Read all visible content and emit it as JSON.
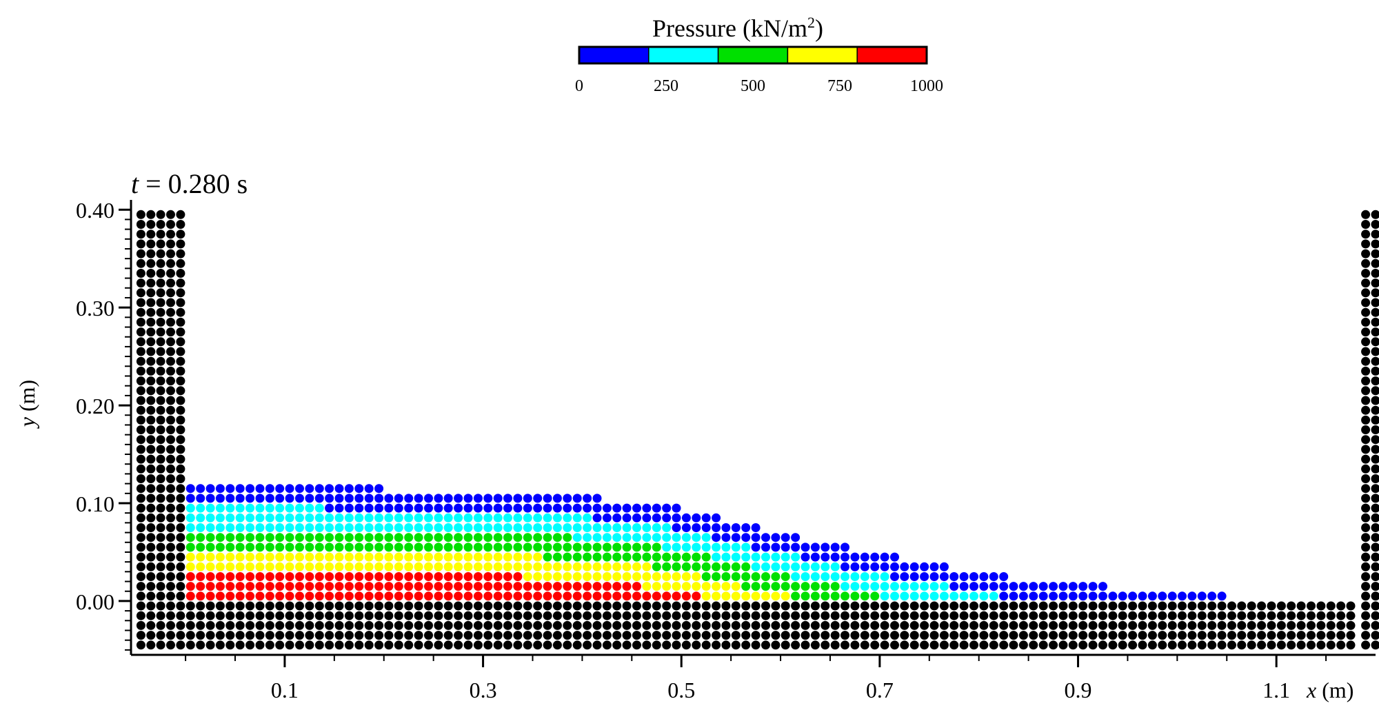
{
  "colorbar": {
    "title": "Pressure (kN/m",
    "title_sup": "2",
    "title_end": ")",
    "ticks": [
      "0",
      "250",
      "500",
      "750",
      "1000"
    ],
    "colors": [
      "#0000ff",
      "#00ffff",
      "#00e000",
      "#ffff00",
      "#ff0000"
    ]
  },
  "chart_data": {
    "type": "scatter",
    "time_label": "t = 0.280 s",
    "time_var": "t",
    "time_value": "= 0.280 s",
    "xlabel_var": "x",
    "xlabel_unit": "(m)",
    "ylabel_var": "y",
    "ylabel_unit": "(m)",
    "x_ticks": [
      "0.1",
      "0.3",
      "0.5",
      "0.7",
      "0.9",
      "1.1"
    ],
    "x_tick_values": [
      0.1,
      0.3,
      0.5,
      0.7,
      0.9,
      1.1
    ],
    "y_ticks": [
      "0.00",
      "0.10",
      "0.20",
      "0.30",
      "0.40"
    ],
    "y_tick_values": [
      0.0,
      0.1,
      0.2,
      0.3,
      0.4
    ],
    "xlim": [
      -0.055,
      1.2
    ],
    "ylim": [
      -0.055,
      0.41
    ],
    "particle_spacing": 0.01,
    "boundary_color": "#000000",
    "boundaries": [
      {
        "name": "left-wall",
        "x_range": [
          -0.045,
          -0.005
        ],
        "y_range": [
          -0.045,
          0.4
        ]
      },
      {
        "name": "right-wall",
        "x_range": [
          1.19,
          1.23
        ],
        "y_range": [
          -0.045,
          0.4
        ]
      },
      {
        "name": "floor",
        "x_range": [
          0.005,
          1.18
        ],
        "y_range": [
          -0.045,
          -0.005
        ]
      }
    ],
    "free_surface_profile": [
      [
        0.0,
        0.117
      ],
      [
        0.1,
        0.117
      ],
      [
        0.2,
        0.115
      ],
      [
        0.3,
        0.112
      ],
      [
        0.4,
        0.107
      ],
      [
        0.5,
        0.095
      ],
      [
        0.6,
        0.07
      ],
      [
        0.7,
        0.048
      ],
      [
        0.8,
        0.03
      ],
      [
        0.88,
        0.018
      ],
      [
        0.95,
        0.014
      ],
      [
        1.0,
        0.012
      ],
      [
        1.05,
        0.008
      ]
    ],
    "pressure_bands_kN_m2": [
      0,
      250,
      500,
      750,
      1000
    ],
    "pressure_max_kN_m2": 1000
  }
}
